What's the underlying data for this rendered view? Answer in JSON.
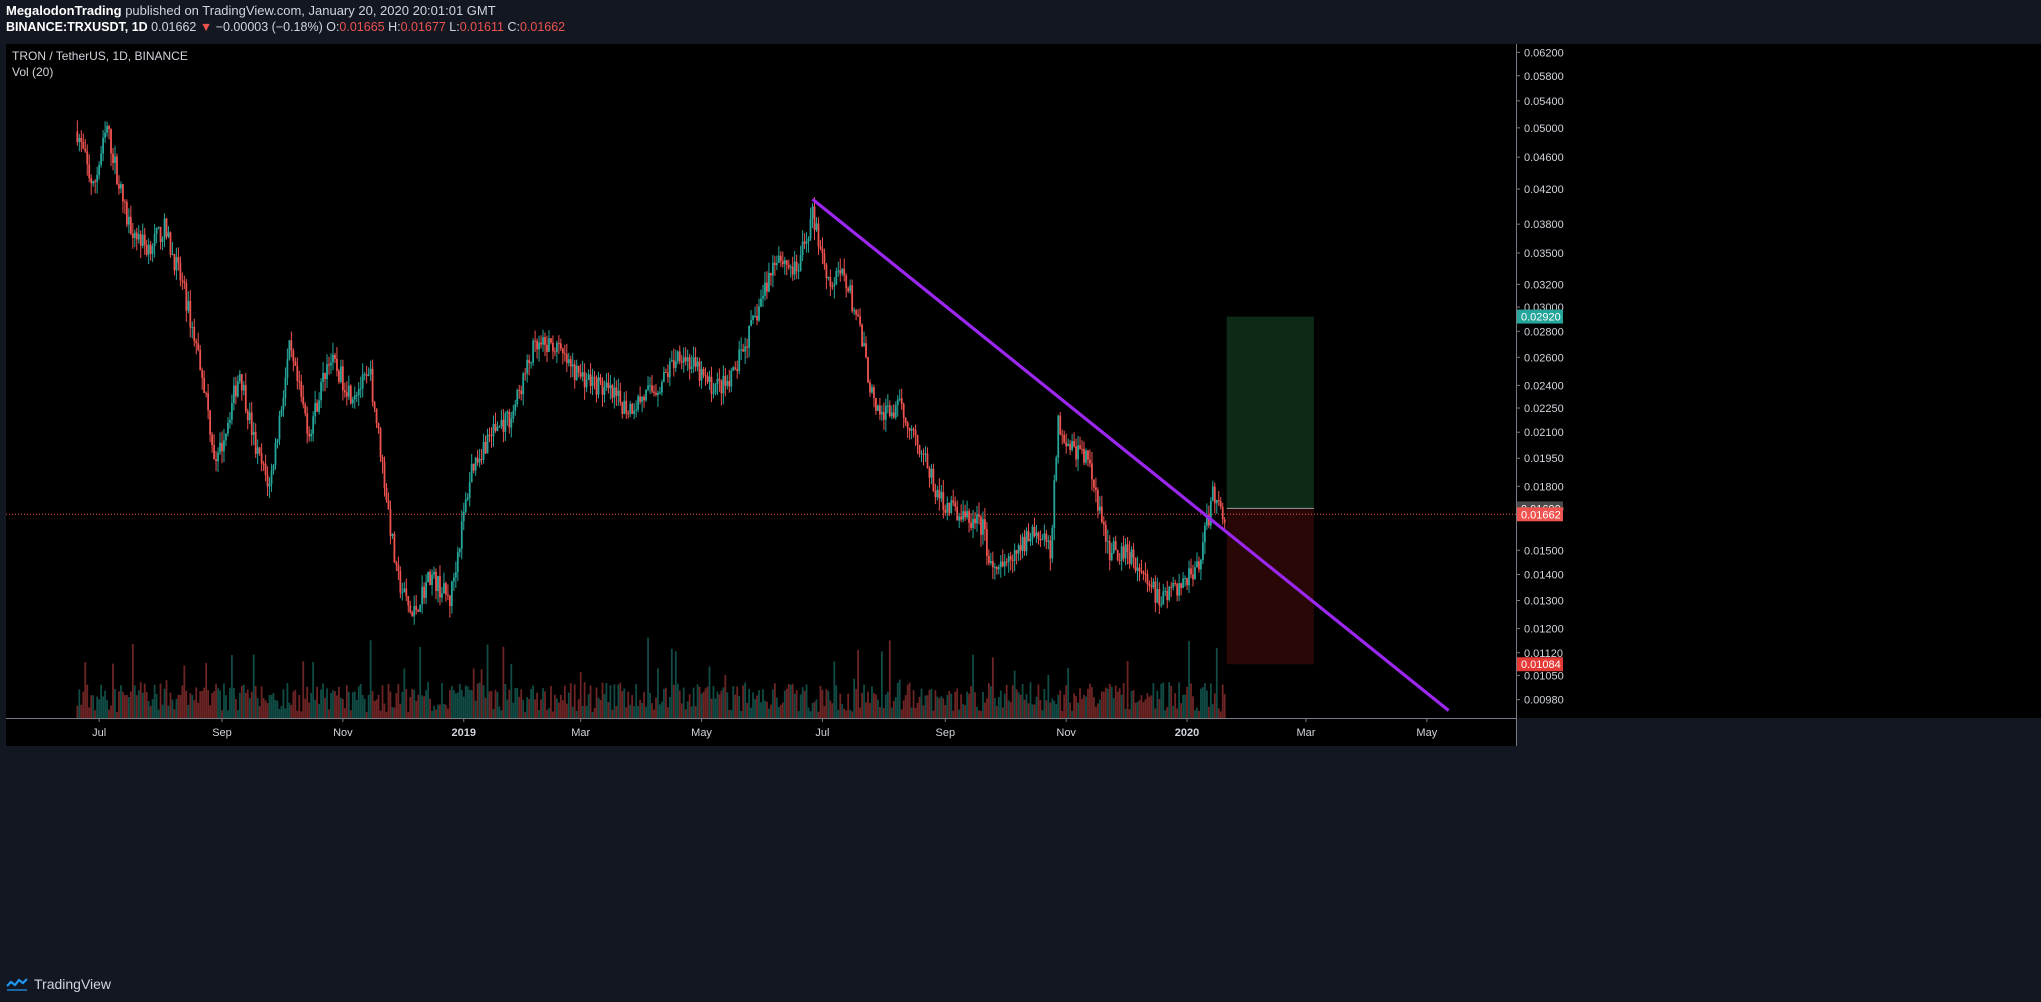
{
  "header": {
    "author": "MegalodonTrading",
    "published": "published on TradingView.com, January 20, 2020 20:01:01 GMT",
    "symbol": "BINANCE:TRXUSDT, 1D",
    "last": "0.01662",
    "arrow": "▼",
    "change": "−0.00003 (−0.18%)",
    "o_label": "O:",
    "o": "0.01665",
    "h_label": "H:",
    "h": "0.01677",
    "l_label": "L:",
    "l": "0.01611",
    "c_label": "C:",
    "c": "0.01662"
  },
  "footer": {
    "brand": "TradingView",
    "logo_icon": "tradingview-logo-icon"
  },
  "colors": {
    "background": "#000000",
    "up": "#26a69a",
    "down": "#ef5350",
    "trendline": "#9c27f0",
    "target_zone": "#0c2a16",
    "stop_zone": "#2a0707"
  },
  "chart_data": {
    "type": "candlestick",
    "title": "TRON / TetherUS, 1D, BINANCE",
    "indicator": "Vol (20)",
    "y_scale": "log",
    "ylim": [
      0.0093,
      0.0635
    ],
    "y_ticks": [
      "0.06200",
      "0.05800",
      "0.05400",
      "0.05000",
      "0.04600",
      "0.04200",
      "0.03800",
      "0.03500",
      "0.03200",
      "0.03000",
      "0.02800",
      "0.02600",
      "0.02400",
      "0.02250",
      "0.02100",
      "0.01950",
      "0.01800",
      "0.01690",
      "0.01500",
      "0.01400",
      "0.01300",
      "0.01200",
      "0.01120",
      "0.01050",
      "0.00980"
    ],
    "x_ticks": [
      "Jul",
      "Sep",
      "Nov",
      "2019",
      "Mar",
      "May",
      "Jul",
      "Sep",
      "Nov",
      "2020",
      "Mar",
      "May"
    ],
    "x_tick_dates": [
      "2018-07-01",
      "2018-09-01",
      "2018-11-01",
      "2019-01-01",
      "2019-03-01",
      "2019-05-01",
      "2019-07-01",
      "2019-09-01",
      "2019-11-01",
      "2020-01-01",
      "2020-03-01",
      "2020-05-01"
    ],
    "x_range": [
      "2018-05-15",
      "2020-06-15"
    ],
    "price_path": [
      {
        "date": "2018-06-20",
        "price": 0.0495
      },
      {
        "date": "2018-06-28",
        "price": 0.042
      },
      {
        "date": "2018-07-05",
        "price": 0.05
      },
      {
        "date": "2018-07-15",
        "price": 0.0385
      },
      {
        "date": "2018-07-25",
        "price": 0.0355
      },
      {
        "date": "2018-08-03",
        "price": 0.0375
      },
      {
        "date": "2018-08-12",
        "price": 0.032
      },
      {
        "date": "2018-08-22",
        "price": 0.025
      },
      {
        "date": "2018-08-29",
        "price": 0.019
      },
      {
        "date": "2018-09-10",
        "price": 0.025
      },
      {
        "date": "2018-09-18",
        "price": 0.02
      },
      {
        "date": "2018-09-25",
        "price": 0.018
      },
      {
        "date": "2018-10-05",
        "price": 0.0265
      },
      {
        "date": "2018-10-15",
        "price": 0.021
      },
      {
        "date": "2018-10-25",
        "price": 0.026
      },
      {
        "date": "2018-11-05",
        "price": 0.0235
      },
      {
        "date": "2018-11-15",
        "price": 0.0245
      },
      {
        "date": "2018-11-20",
        "price": 0.02
      },
      {
        "date": "2018-11-28",
        "price": 0.014
      },
      {
        "date": "2018-12-06",
        "price": 0.0124
      },
      {
        "date": "2018-12-15",
        "price": 0.014
      },
      {
        "date": "2018-12-25",
        "price": 0.013
      },
      {
        "date": "2019-01-05",
        "price": 0.019
      },
      {
        "date": "2019-01-15",
        "price": 0.021
      },
      {
        "date": "2019-01-25",
        "price": 0.022
      },
      {
        "date": "2019-02-05",
        "price": 0.0265
      },
      {
        "date": "2019-02-15",
        "price": 0.027
      },
      {
        "date": "2019-02-25",
        "price": 0.025
      },
      {
        "date": "2019-03-10",
        "price": 0.024
      },
      {
        "date": "2019-03-25",
        "price": 0.0225
      },
      {
        "date": "2019-04-10",
        "price": 0.024
      },
      {
        "date": "2019-04-20",
        "price": 0.0265
      },
      {
        "date": "2019-05-05",
        "price": 0.024
      },
      {
        "date": "2019-05-15",
        "price": 0.024
      },
      {
        "date": "2019-05-28",
        "price": 0.029
      },
      {
        "date": "2019-06-08",
        "price": 0.035
      },
      {
        "date": "2019-06-18",
        "price": 0.033
      },
      {
        "date": "2019-06-26",
        "price": 0.039
      },
      {
        "date": "2019-07-05",
        "price": 0.032
      },
      {
        "date": "2019-07-12",
        "price": 0.033
      },
      {
        "date": "2019-07-20",
        "price": 0.028
      },
      {
        "date": "2019-07-28",
        "price": 0.022
      },
      {
        "date": "2019-08-10",
        "price": 0.0225
      },
      {
        "date": "2019-08-20",
        "price": 0.02
      },
      {
        "date": "2019-08-28",
        "price": 0.0175
      },
      {
        "date": "2019-09-10",
        "price": 0.0165
      },
      {
        "date": "2019-09-20",
        "price": 0.016
      },
      {
        "date": "2019-09-25",
        "price": 0.014
      },
      {
        "date": "2019-10-05",
        "price": 0.0145
      },
      {
        "date": "2019-10-15",
        "price": 0.016
      },
      {
        "date": "2019-10-24",
        "price": 0.015
      },
      {
        "date": "2019-10-28",
        "price": 0.0215
      },
      {
        "date": "2019-11-05",
        "price": 0.02
      },
      {
        "date": "2019-11-12",
        "price": 0.0195
      },
      {
        "date": "2019-11-22",
        "price": 0.015
      },
      {
        "date": "2019-12-02",
        "price": 0.015
      },
      {
        "date": "2019-12-10",
        "price": 0.014
      },
      {
        "date": "2019-12-18",
        "price": 0.013
      },
      {
        "date": "2019-12-28",
        "price": 0.0135
      },
      {
        "date": "2020-01-07",
        "price": 0.0145
      },
      {
        "date": "2020-01-14",
        "price": 0.0175
      },
      {
        "date": "2020-01-20",
        "price": 0.01662
      }
    ],
    "trendline": {
      "start": {
        "date": "2019-06-26",
        "price": 0.0408
      },
      "end": {
        "date": "2020-05-12",
        "price": 0.0095
      },
      "color": "#9c27f0"
    },
    "last_price_line": 0.01662,
    "price_labels": [
      {
        "value": 0.0292,
        "text": "0.02920",
        "bg": "#26a69a"
      },
      {
        "value": 0.0169,
        "text": "0.01690",
        "bg": "#4a4a4a"
      },
      {
        "value": 0.01662,
        "text": "0.01662",
        "bg": "#ef5350"
      },
      {
        "value": 0.01084,
        "text": "0.01084",
        "bg": "#e53935"
      }
    ],
    "position": {
      "start": "2020-01-21",
      "end": "2020-03-05",
      "entry": 0.0169,
      "target": 0.0292,
      "stop": 0.01084
    }
  }
}
